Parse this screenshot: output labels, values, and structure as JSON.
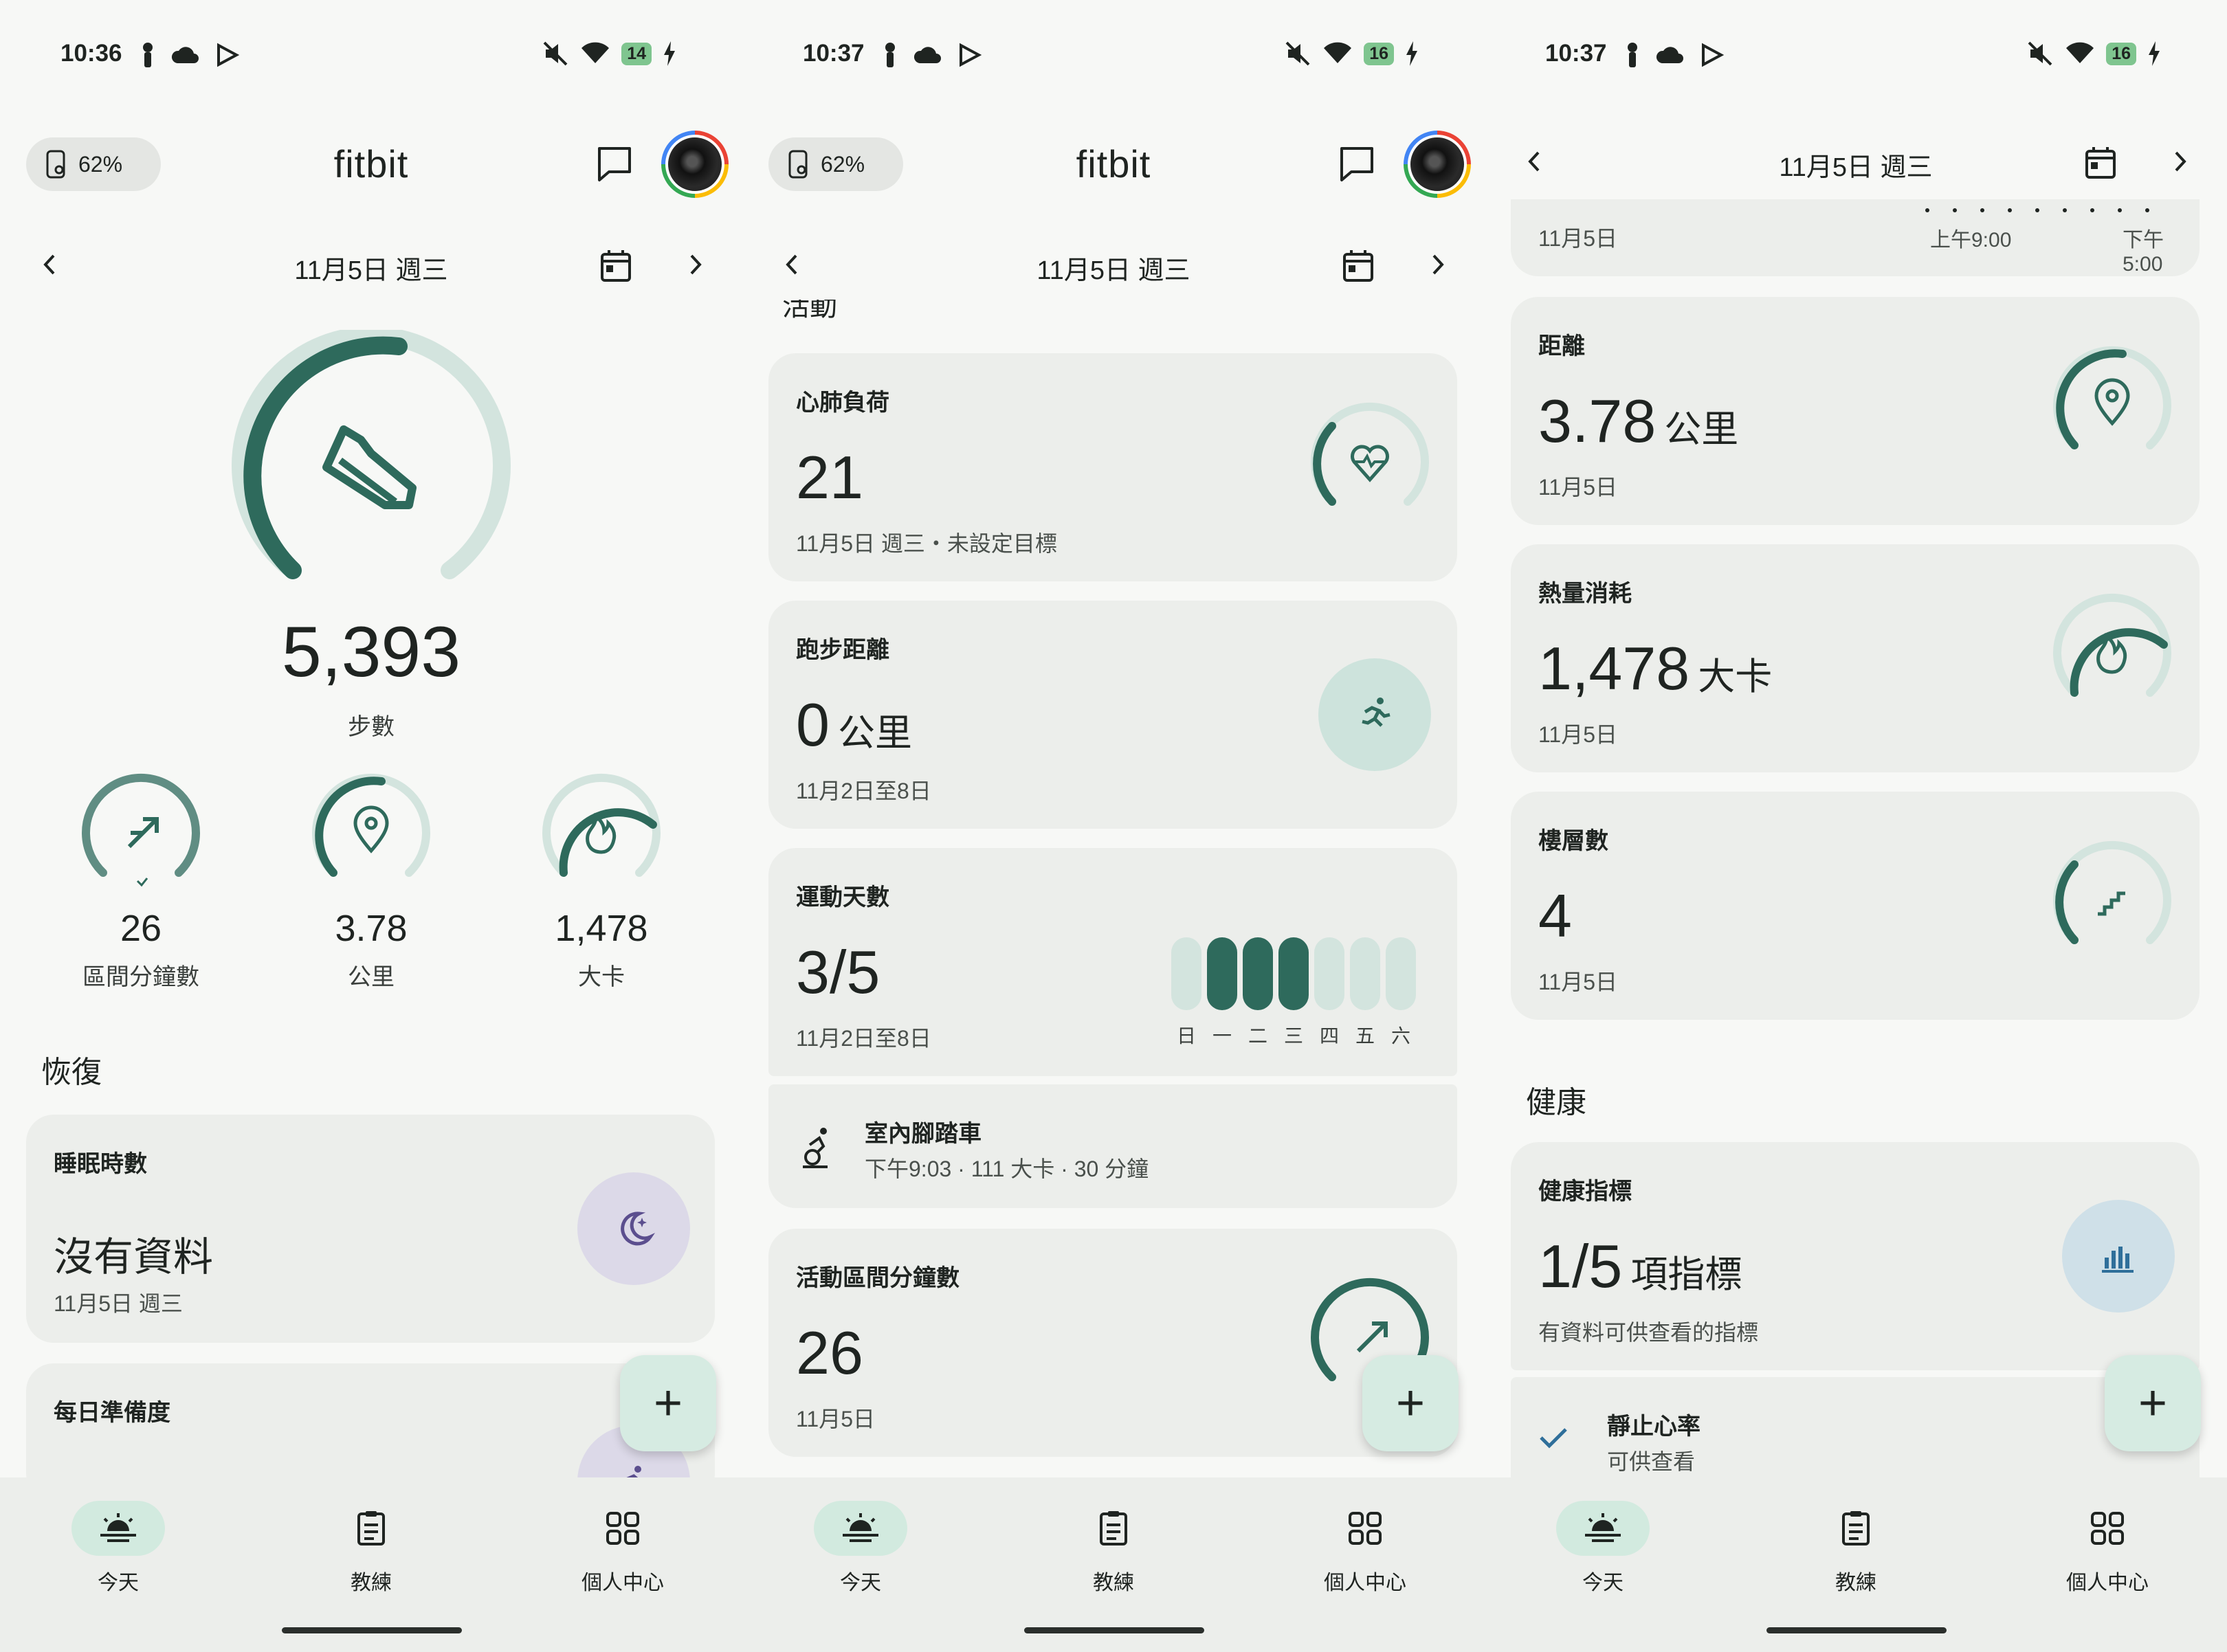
{
  "colors": {
    "accent": "#2e6a5c",
    "accent_light": "#d3e4de",
    "card_bg": "#eceeeb",
    "sleep_badge": "#dcd9e8",
    "metrics_badge": "#cfe0e8",
    "running_badge": "#cde3dc"
  },
  "screens": [
    {
      "status": {
        "time": "10:36",
        "battery": "14"
      },
      "header": {
        "battery_pill": "62%",
        "app_title": "fitbit"
      },
      "date_nav": {
        "label": "11月5日 週三"
      },
      "steps": {
        "value": "5,393",
        "label": "步數",
        "progress": 0.62
      },
      "mini_stats": [
        {
          "value": "26",
          "label": "區間分鐘數",
          "icon": "zone-arrow-icon",
          "progress": 1.0
        },
        {
          "value": "3.78",
          "label": "公里",
          "icon": "location-pin-icon",
          "progress": 0.55
        },
        {
          "value": "1,478",
          "label": "大卡",
          "icon": "flame-icon",
          "progress": 0.7
        }
      ],
      "section_recovery": "恢復",
      "sleep_card": {
        "title": "睡眠時數",
        "value": "沒有資料",
        "sub": "11月5日 週三"
      },
      "readiness_card": {
        "title": "每日準備度"
      },
      "fab": "+",
      "nav": {
        "today": "今天",
        "coach": "教練",
        "profile": "個人中心"
      }
    },
    {
      "status": {
        "time": "10:37",
        "battery": "16"
      },
      "header": {
        "battery_pill": "62%",
        "app_title": "fitbit"
      },
      "date_nav": {
        "label": "11月5日 週三"
      },
      "partial_heading": "活動",
      "cardio_card": {
        "title": "心肺負荷",
        "value": "21",
        "sub": "11月5日 週三・未設定目標"
      },
      "running_card": {
        "title": "跑步距離",
        "value": "0",
        "unit": "公里",
        "sub": "11月2日至8日"
      },
      "exercise_card": {
        "title": "運動天數",
        "value": "3/5",
        "sub": "11月2日至8日",
        "days": [
          "日",
          "一",
          "二",
          "三",
          "四",
          "五",
          "六"
        ],
        "active": [
          false,
          true,
          true,
          true,
          false,
          false,
          false
        ]
      },
      "exercise_item": {
        "name": "室內腳踏車",
        "detail": "下午9:03 · 111 大卡 · 30 分鐘"
      },
      "azm_card": {
        "title": "活動區間分鐘數",
        "value": "26",
        "sub": "11月5日"
      },
      "fab": "+",
      "nav": {
        "today": "今天",
        "coach": "教練",
        "profile": "個人中心"
      }
    },
    {
      "status": {
        "time": "10:37",
        "battery": "16"
      },
      "date_nav": {
        "label": "11月5日 週三"
      },
      "partial_card": {
        "date": "11月5日",
        "t1": "上午9:00",
        "t2": "下午5:00"
      },
      "distance_card": {
        "title": "距離",
        "value": "3.78",
        "unit": "公里",
        "sub": "11月5日"
      },
      "calories_card": {
        "title": "熱量消耗",
        "value": "1,478",
        "unit": "大卡",
        "sub": "11月5日"
      },
      "floors_card": {
        "title": "樓層數",
        "value": "4",
        "sub": "11月5日"
      },
      "section_health": "健康",
      "metrics_card": {
        "title": "健康指標",
        "value": "1/5",
        "unit": "項指標",
        "sub": "有資料可供查看的指標"
      },
      "rhr_item": {
        "name": "靜止心率",
        "status": "可供查看"
      },
      "fab": "+",
      "nav": {
        "today": "今天",
        "coach": "教練",
        "profile": "個人中心"
      }
    }
  ]
}
